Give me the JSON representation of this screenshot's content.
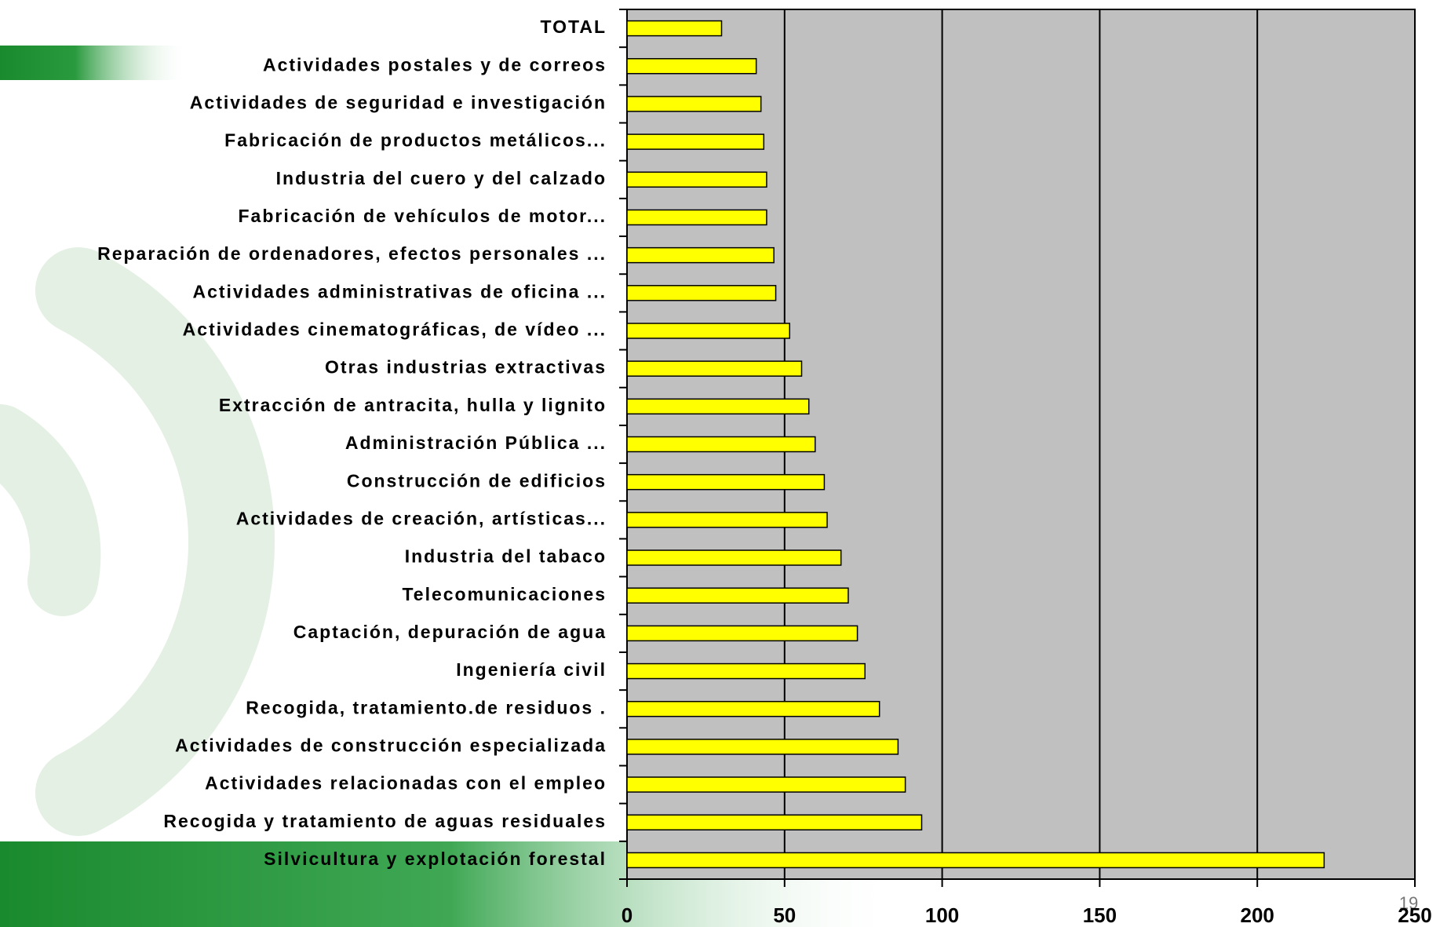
{
  "chart_data": {
    "type": "hbar",
    "categories": [
      "TOTAL",
      "Actividades postales y de correos",
      "Actividades de seguridad e investigación",
      "Fabricación de productos metálicos...",
      "Industria del cuero y del calzado",
      "Fabricación de vehículos de motor...",
      "Reparación de ordenadores, efectos personales ...",
      "Actividades administrativas de oficina ...",
      "Actividades cinematográficas, de vídeo ...",
      "Otras industrias extractivas",
      "Extracción de antracita, hulla y lignito",
      "Administración Pública ...",
      "Construcción de edificios",
      "Actividades de creación, artísticas...",
      "Industria del tabaco",
      "Telecomunicaciones",
      "Captación, depuración de agua",
      "Ingeniería civil",
      "Recogida, tratamiento.de residuos .",
      "Actividades de construcción especializada",
      "Actividades relacionadas con el empleo",
      "Recogida y tratamiento de aguas residuales",
      "Silvicultura y explotación forestal"
    ],
    "values": [
      30,
      41,
      42.5,
      43.4,
      44.3,
      44.3,
      46.6,
      47.2,
      51.6,
      55.4,
      57.7,
      59.7,
      62.6,
      63.5,
      67.9,
      70.2,
      73.1,
      75.5,
      80.1,
      86,
      88.3,
      93.5,
      221.2
    ],
    "color": "#ffff00",
    "plot_background": "#c0c0c0",
    "xlim": [
      0,
      250
    ],
    "xticks": [
      0,
      50,
      100,
      150,
      200,
      250
    ],
    "grid": true
  },
  "page_number": "19"
}
